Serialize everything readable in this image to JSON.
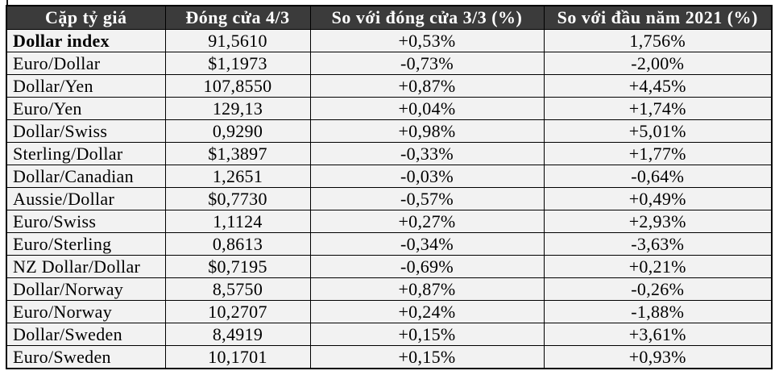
{
  "colors": {
    "header_bg": "#3b3b3b",
    "header_text": "#ffffff",
    "row_bg": "#f2f2f2",
    "border": "#000000",
    "body_text": "#000000"
  },
  "chart_data": {
    "type": "table",
    "columns": [
      "Cặp tỷ giá",
      "Đóng cửa 4/3",
      "So với đóng cửa 3/3 (%)",
      "So với đầu năm 2021 (%)"
    ],
    "rows": [
      [
        "Dollar index",
        "91,5610",
        "+0,53%",
        "1,756%"
      ],
      [
        "Euro/Dollar",
        "$1,1973",
        "-0,73%",
        "-2,00%"
      ],
      [
        "Dollar/Yen",
        "107,8550",
        "+0,87%",
        "+4,45%"
      ],
      [
        "Euro/Yen",
        "129,13",
        "+0,04%",
        "+1,74%"
      ],
      [
        "Dollar/Swiss",
        "0,9290",
        "+0,98%",
        "+5,01%"
      ],
      [
        "Sterling/Dollar",
        "$1,3897",
        "-0,33%",
        "+1,77%"
      ],
      [
        "Dollar/Canadian",
        "1,2651",
        "-0,03%",
        "-0,64%"
      ],
      [
        "Aussie/Dollar",
        "$0,7730",
        "-0,57%",
        "+0,49%"
      ],
      [
        "Euro/Swiss",
        "1,1124",
        "+0,27%",
        "+2,93%"
      ],
      [
        "Euro/Sterling",
        "0,8613",
        "-0,34%",
        "-3,63%"
      ],
      [
        "NZ Dollar/Dollar",
        "$0,7195",
        "-0,69%",
        "+0,21%"
      ],
      [
        "Dollar/Norway",
        "8,5750",
        "+0,87%",
        "-0,26%"
      ],
      [
        "Euro/Norway",
        "10,2707",
        "+0,24%",
        "-1,88%"
      ],
      [
        "Dollar/Sweden",
        "8,4919",
        "+0,15%",
        "+3,61%"
      ],
      [
        "Euro/Sweden",
        "10,1701",
        "+0,15%",
        "+0,93%"
      ]
    ]
  }
}
